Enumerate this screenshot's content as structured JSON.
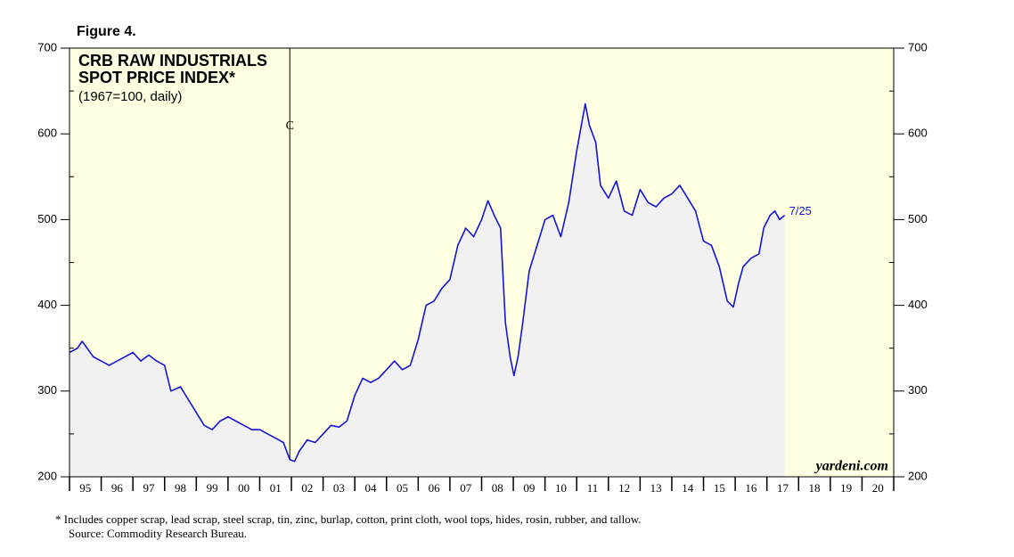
{
  "chart_data": {
    "type": "line",
    "figure_label": "Figure 4.",
    "title_lines": [
      "CRB RAW INDUSTRIALS",
      "SPOT PRICE INDEX*"
    ],
    "subtitle": "(1967=100, daily)",
    "footnote": "*  Includes copper scrap, lead scrap, steel scrap, tin, zinc, burlap, cotton, print cloth, wool tops, hides, rosin, rubber, and tallow.",
    "source": "Source: Commodity Research Bureau.",
    "watermark": "yardeni.com",
    "end_label": "7/25",
    "recession": {
      "label": "C",
      "x": 2001.95
    },
    "xlim": [
      1995,
      2021
    ],
    "xticks": [
      1995,
      1996,
      1997,
      1998,
      1999,
      2000,
      2001,
      2002,
      2003,
      2004,
      2005,
      2006,
      2007,
      2008,
      2009,
      2010,
      2011,
      2012,
      2013,
      2014,
      2015,
      2016,
      2017,
      2018,
      2019,
      2020,
      2021
    ],
    "year_labels": [
      "95",
      "96",
      "97",
      "98",
      "99",
      "00",
      "01",
      "02",
      "03",
      "04",
      "05",
      "06",
      "07",
      "08",
      "09",
      "10",
      "11",
      "12",
      "13",
      "14",
      "15",
      "16",
      "17",
      "18",
      "19",
      "20"
    ],
    "ylim": [
      200,
      700
    ],
    "yticks": [
      200,
      300,
      400,
      500,
      600,
      700
    ],
    "y_minor_ticks": [
      250,
      350,
      450,
      550,
      650
    ],
    "line_color": "#1414d8",
    "area_color": "#f1f1f1",
    "plot_background": "#ffffe2",
    "x": [
      1995.0,
      1995.25,
      1995.4,
      1995.75,
      1996.0,
      1996.25,
      1996.5,
      1996.75,
      1997.0,
      1997.25,
      1997.5,
      1997.75,
      1998.0,
      1998.2,
      1998.5,
      1998.75,
      1999.0,
      1999.25,
      1999.5,
      1999.75,
      2000.0,
      2000.25,
      2000.5,
      2000.75,
      2001.0,
      2001.25,
      2001.5,
      2001.75,
      2001.95,
      2002.1,
      2002.25,
      2002.5,
      2002.75,
      2003.0,
      2003.25,
      2003.5,
      2003.75,
      2004.0,
      2004.25,
      2004.5,
      2004.75,
      2005.0,
      2005.25,
      2005.5,
      2005.75,
      2006.0,
      2006.25,
      2006.5,
      2006.75,
      2007.0,
      2007.25,
      2007.5,
      2007.75,
      2008.0,
      2008.2,
      2008.4,
      2008.6,
      2008.75,
      2008.9,
      2009.02,
      2009.15,
      2009.3,
      2009.5,
      2009.75,
      2010.0,
      2010.25,
      2010.5,
      2010.75,
      2011.0,
      2011.27,
      2011.4,
      2011.6,
      2011.75,
      2012.0,
      2012.25,
      2012.5,
      2012.75,
      2013.0,
      2013.25,
      2013.5,
      2013.75,
      2014.0,
      2014.25,
      2014.5,
      2014.75,
      2015.0,
      2015.25,
      2015.5,
      2015.75,
      2015.94,
      2016.1,
      2016.25,
      2016.5,
      2016.75,
      2016.9,
      2017.1,
      2017.25,
      2017.4,
      2017.56
    ],
    "values": [
      345,
      350,
      358,
      340,
      335,
      330,
      335,
      340,
      345,
      335,
      342,
      335,
      330,
      300,
      305,
      290,
      275,
      260,
      255,
      265,
      270,
      265,
      260,
      255,
      255,
      250,
      245,
      240,
      220,
      218,
      230,
      243,
      240,
      250,
      260,
      258,
      265,
      295,
      315,
      310,
      315,
      325,
      335,
      325,
      330,
      360,
      400,
      405,
      420,
      430,
      470,
      490,
      480,
      500,
      522,
      505,
      490,
      380,
      340,
      318,
      340,
      380,
      440,
      470,
      500,
      505,
      480,
      520,
      580,
      635,
      610,
      590,
      540,
      525,
      545,
      510,
      505,
      535,
      520,
      515,
      525,
      530,
      540,
      525,
      510,
      475,
      470,
      445,
      405,
      398,
      425,
      445,
      455,
      460,
      490,
      505,
      510,
      500,
      505
    ]
  }
}
